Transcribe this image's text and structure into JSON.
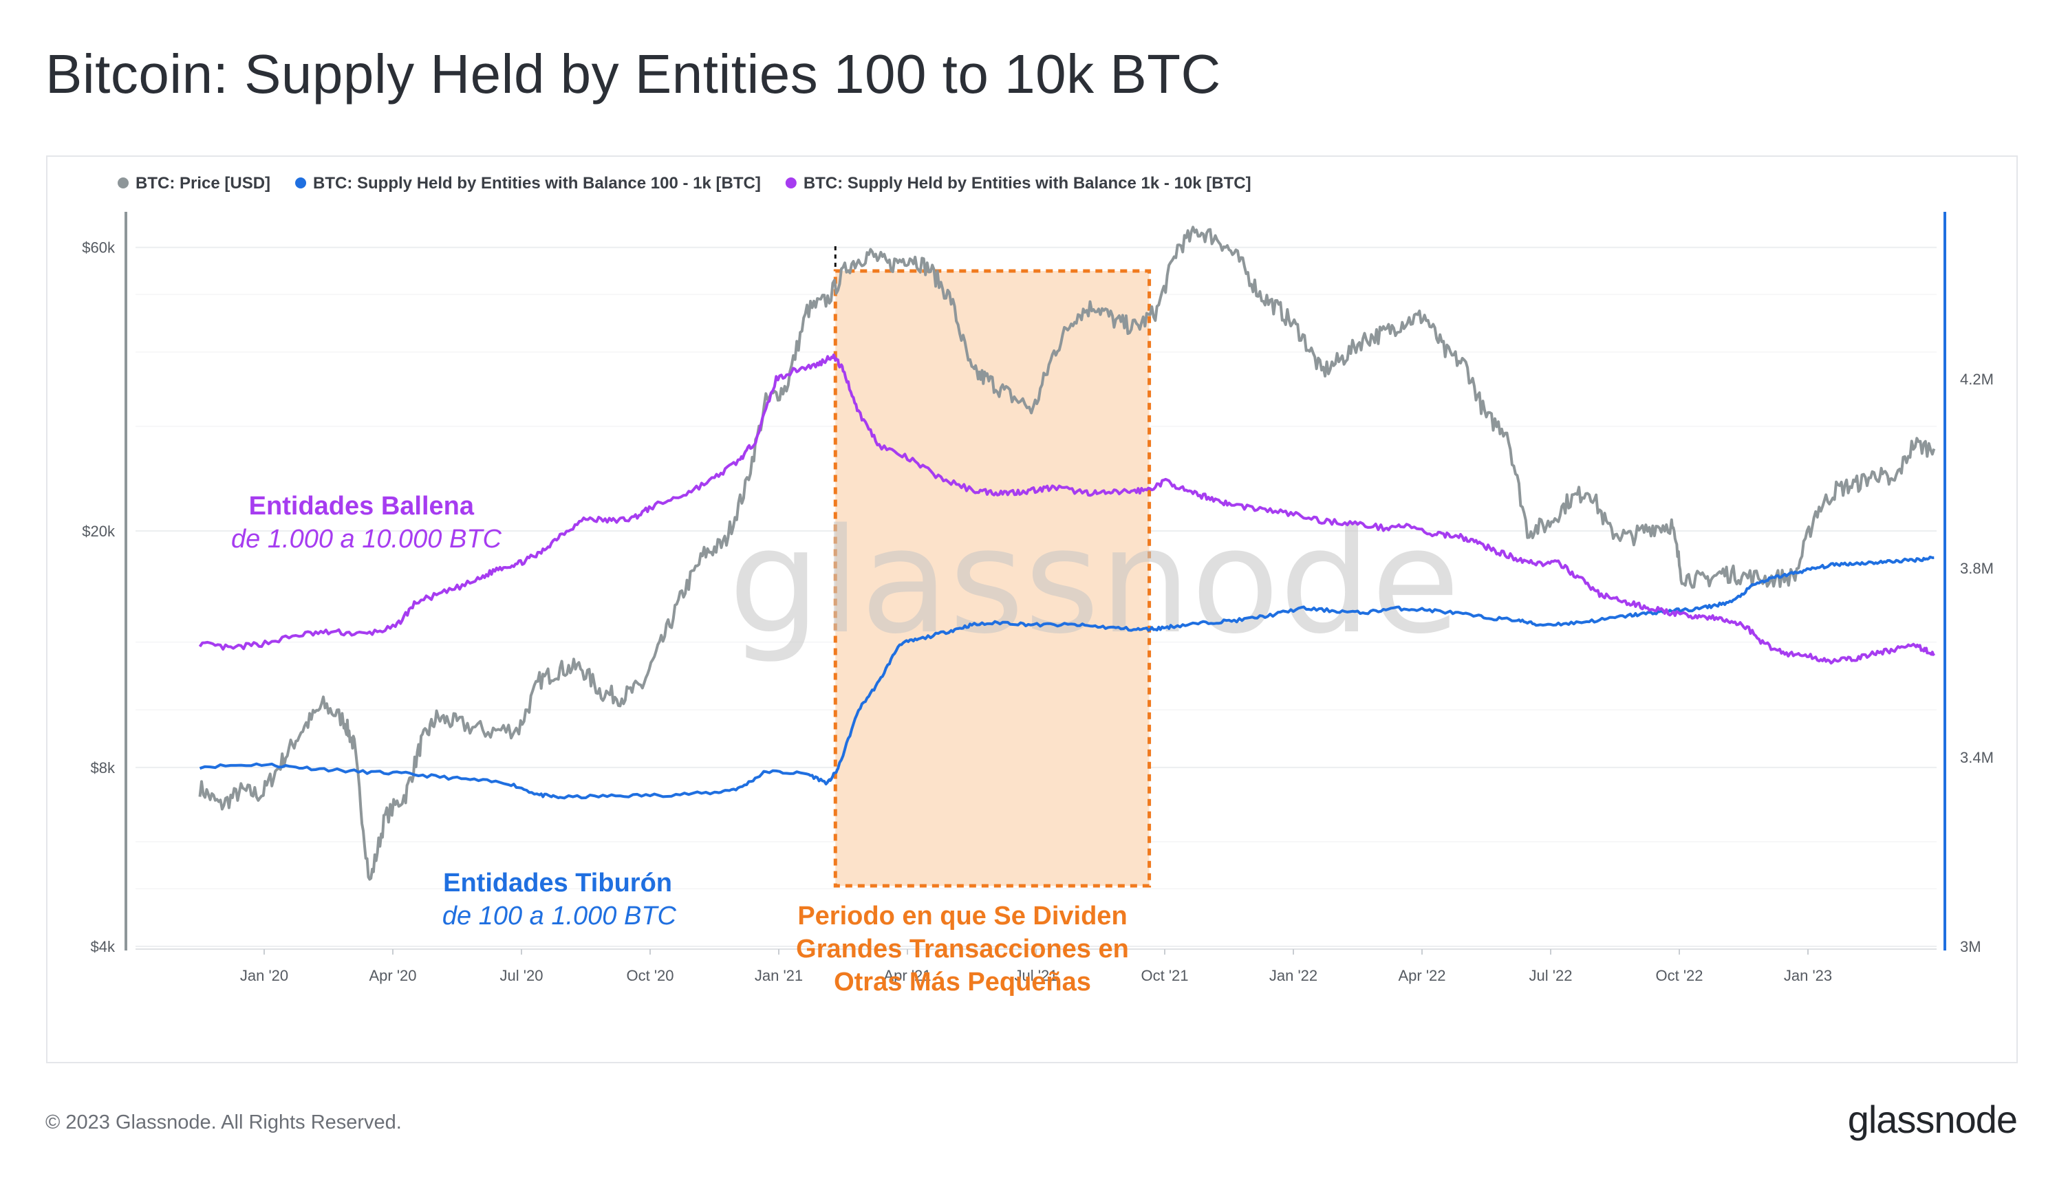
{
  "title": "Bitcoin: Supply Held by Entities 100 to 10k BTC",
  "footer": {
    "copyright": "© 2023 Glassnode. All Rights Reserved.",
    "logo": "glassnode"
  },
  "colors": {
    "price": "#8e9699",
    "shark": "#1f6fe0",
    "whale": "#a63cf0",
    "highlight": "#f07a1e",
    "highlight_fill": "#fce2ca"
  },
  "chart_data": {
    "type": "line",
    "title": "Bitcoin: Supply Held by Entities 100 to 10k BTC",
    "watermark": "glassnode",
    "x_range": [
      "2019-11-15",
      "2023-03-31"
    ],
    "x_ticks": [
      {
        "label": "Jan '20",
        "t": 0.125
      },
      {
        "label": "Apr '20",
        "t": 0.375
      },
      {
        "label": "Jul '20",
        "t": 0.625
      },
      {
        "label": "Oct '20",
        "t": 0.875
      },
      {
        "label": "Jan '21",
        "t": 1.125
      },
      {
        "label": "Apr '21",
        "t": 1.375
      },
      {
        "label": "Jul '21",
        "t": 1.625
      },
      {
        "label": "Oct '21",
        "t": 1.875
      },
      {
        "label": "Jan '22",
        "t": 2.125
      },
      {
        "label": "Apr '22",
        "t": 2.375
      },
      {
        "label": "Jul '22",
        "t": 2.625
      },
      {
        "label": "Oct '22",
        "t": 2.875
      },
      {
        "label": "Jan '23",
        "t": 3.125
      }
    ],
    "y_left": {
      "scale": "log",
      "range": [
        4000,
        75000
      ],
      "ticks": [
        {
          "label": "$4k",
          "v": 4000
        },
        {
          "label": "$8k",
          "v": 8000
        },
        {
          "label": "$20k",
          "v": 20000
        },
        {
          "label": "$60k",
          "v": 60000
        }
      ]
    },
    "y_right": {
      "scale": "linear",
      "range": [
        3000000,
        4600000
      ],
      "ticks": [
        {
          "label": "3M",
          "v": 3000000
        },
        {
          "label": "3.4M",
          "v": 3400000
        },
        {
          "label": "3.8M",
          "v": 3800000
        },
        {
          "label": "4.2M",
          "v": 4200000
        }
      ]
    },
    "legend": [
      {
        "label": "BTC: Price [USD]",
        "color": "#8e9699"
      },
      {
        "label": "BTC: Supply Held by Entities with Balance 100 - 1k [BTC]",
        "color": "#1f6fe0"
      },
      {
        "label": "BTC: Supply Held by Entities with Balance 1k - 10k [BTC]",
        "color": "#a63cf0"
      }
    ],
    "series": [
      {
        "name": "BTC: Price [USD]",
        "axis": "left",
        "points": [
          [
            0,
            7400
          ],
          [
            0.04,
            6900
          ],
          [
            0.08,
            7300
          ],
          [
            0.12,
            7200
          ],
          [
            0.16,
            8200
          ],
          [
            0.2,
            9300
          ],
          [
            0.24,
            10200
          ],
          [
            0.28,
            9600
          ],
          [
            0.3,
            8700
          ],
          [
            0.33,
            5100
          ],
          [
            0.36,
            6600
          ],
          [
            0.4,
            7200
          ],
          [
            0.43,
            8800
          ],
          [
            0.46,
            9700
          ],
          [
            0.5,
            9500
          ],
          [
            0.56,
            9200
          ],
          [
            0.62,
            9300
          ],
          [
            0.66,
            11200
          ],
          [
            0.7,
            11700
          ],
          [
            0.74,
            11800
          ],
          [
            0.78,
            10700
          ],
          [
            0.82,
            10500
          ],
          [
            0.86,
            11000
          ],
          [
            0.9,
            13100
          ],
          [
            0.94,
            15800
          ],
          [
            0.98,
            18300
          ],
          [
            1.02,
            19100
          ],
          [
            1.06,
            23600
          ],
          [
            1.1,
            33000
          ],
          [
            1.14,
            35000
          ],
          [
            1.18,
            47000
          ],
          [
            1.22,
            49000
          ],
          [
            1.26,
            56000
          ],
          [
            1.3,
            58500
          ],
          [
            1.34,
            56000
          ],
          [
            1.38,
            58000
          ],
          [
            1.42,
            55000
          ],
          [
            1.46,
            49000
          ],
          [
            1.5,
            37000
          ],
          [
            1.53,
            36000
          ],
          [
            1.57,
            34000
          ],
          [
            1.62,
            32000
          ],
          [
            1.66,
            40000
          ],
          [
            1.7,
            46000
          ],
          [
            1.74,
            48000
          ],
          [
            1.78,
            45000
          ],
          [
            1.82,
            44000
          ],
          [
            1.86,
            47000
          ],
          [
            1.9,
            60000
          ],
          [
            1.94,
            64000
          ],
          [
            1.98,
            62000
          ],
          [
            2.02,
            57000
          ],
          [
            2.06,
            50000
          ],
          [
            2.1,
            47000
          ],
          [
            2.14,
            43000
          ],
          [
            2.18,
            37000
          ],
          [
            2.22,
            39000
          ],
          [
            2.26,
            42000
          ],
          [
            2.3,
            43000
          ],
          [
            2.34,
            45000
          ],
          [
            2.38,
            46000
          ],
          [
            2.42,
            40000
          ],
          [
            2.46,
            38000
          ],
          [
            2.5,
            31000
          ],
          [
            2.54,
            29500
          ],
          [
            2.58,
            20000
          ],
          [
            2.62,
            20500
          ],
          [
            2.66,
            22500
          ],
          [
            2.7,
            23500
          ],
          [
            2.74,
            20000
          ],
          [
            2.78,
            19500
          ],
          [
            2.82,
            20300
          ],
          [
            2.86,
            20500
          ],
          [
            2.88,
            16800
          ],
          [
            2.92,
            16500
          ],
          [
            2.96,
            17000
          ],
          [
            3.0,
            16800
          ],
          [
            3.05,
            16600
          ],
          [
            3.1,
            16800
          ],
          [
            3.14,
            21500
          ],
          [
            3.18,
            23500
          ],
          [
            3.22,
            24000
          ],
          [
            3.26,
            25000
          ],
          [
            3.29,
            24000
          ],
          [
            3.33,
            28000
          ],
          [
            3.37,
            27500
          ]
        ]
      },
      {
        "name": "BTC: Supply Held by Entities with Balance 100 - 1k [BTC]",
        "axis": "right",
        "points": [
          [
            0,
            3380000
          ],
          [
            0.12,
            3385000
          ],
          [
            0.2,
            3378000
          ],
          [
            0.3,
            3370000
          ],
          [
            0.4,
            3365000
          ],
          [
            0.5,
            3355000
          ],
          [
            0.6,
            3345000
          ],
          [
            0.66,
            3320000
          ],
          [
            0.7,
            3315000
          ],
          [
            0.8,
            3318000
          ],
          [
            0.9,
            3320000
          ],
          [
            1.0,
            3325000
          ],
          [
            1.05,
            3335000
          ],
          [
            1.1,
            3370000
          ],
          [
            1.18,
            3365000
          ],
          [
            1.22,
            3345000
          ],
          [
            1.24,
            3375000
          ],
          [
            1.28,
            3500000
          ],
          [
            1.32,
            3560000
          ],
          [
            1.36,
            3640000
          ],
          [
            1.4,
            3650000
          ],
          [
            1.46,
            3668000
          ],
          [
            1.5,
            3680000
          ],
          [
            1.56,
            3685000
          ],
          [
            1.62,
            3680000
          ],
          [
            1.7,
            3680000
          ],
          [
            1.76,
            3675000
          ],
          [
            1.82,
            3670000
          ],
          [
            1.86,
            3672000
          ],
          [
            1.9,
            3678000
          ],
          [
            1.96,
            3685000
          ],
          [
            2.02,
            3690000
          ],
          [
            2.08,
            3700000
          ],
          [
            2.14,
            3715000
          ],
          [
            2.2,
            3710000
          ],
          [
            2.26,
            3705000
          ],
          [
            2.32,
            3715000
          ],
          [
            2.38,
            3712000
          ],
          [
            2.44,
            3705000
          ],
          [
            2.5,
            3695000
          ],
          [
            2.56,
            3690000
          ],
          [
            2.6,
            3680000
          ],
          [
            2.66,
            3683000
          ],
          [
            2.72,
            3690000
          ],
          [
            2.78,
            3700000
          ],
          [
            2.82,
            3705000
          ],
          [
            2.86,
            3710000
          ],
          [
            2.9,
            3712000
          ],
          [
            2.94,
            3720000
          ],
          [
            2.98,
            3730000
          ],
          [
            3.02,
            3765000
          ],
          [
            3.06,
            3780000
          ],
          [
            3.1,
            3790000
          ],
          [
            3.14,
            3800000
          ],
          [
            3.18,
            3808000
          ],
          [
            3.22,
            3810000
          ],
          [
            3.26,
            3812000
          ],
          [
            3.3,
            3815000
          ],
          [
            3.34,
            3818000
          ],
          [
            3.37,
            3822000
          ]
        ]
      },
      {
        "name": "BTC: Supply Held by Entities with Balance 1k - 10k [BTC]",
        "axis": "right",
        "points": [
          [
            0,
            3640000
          ],
          [
            0.06,
            3630000
          ],
          [
            0.12,
            3640000
          ],
          [
            0.2,
            3660000
          ],
          [
            0.26,
            3665000
          ],
          [
            0.32,
            3660000
          ],
          [
            0.38,
            3675000
          ],
          [
            0.42,
            3728000
          ],
          [
            0.48,
            3750000
          ],
          [
            0.54,
            3775000
          ],
          [
            0.58,
            3800000
          ],
          [
            0.62,
            3810000
          ],
          [
            0.66,
            3830000
          ],
          [
            0.7,
            3870000
          ],
          [
            0.75,
            3905000
          ],
          [
            0.8,
            3900000
          ],
          [
            0.84,
            3905000
          ],
          [
            0.88,
            3930000
          ],
          [
            0.94,
            3955000
          ],
          [
            1.0,
            3990000
          ],
          [
            1.05,
            4030000
          ],
          [
            1.08,
            4070000
          ],
          [
            1.12,
            4200000
          ],
          [
            1.16,
            4220000
          ],
          [
            1.2,
            4230000
          ],
          [
            1.23,
            4250000
          ],
          [
            1.25,
            4220000
          ],
          [
            1.28,
            4130000
          ],
          [
            1.32,
            4060000
          ],
          [
            1.38,
            4030000
          ],
          [
            1.44,
            3990000
          ],
          [
            1.5,
            3965000
          ],
          [
            1.54,
            3960000
          ],
          [
            1.58,
            3960000
          ],
          [
            1.62,
            3965000
          ],
          [
            1.66,
            3970000
          ],
          [
            1.72,
            3960000
          ],
          [
            1.76,
            3958000
          ],
          [
            1.8,
            3962000
          ],
          [
            1.84,
            3965000
          ],
          [
            1.88,
            3985000
          ],
          [
            1.92,
            3960000
          ],
          [
            1.96,
            3950000
          ],
          [
            2.0,
            3935000
          ],
          [
            2.06,
            3925000
          ],
          [
            2.12,
            3915000
          ],
          [
            2.18,
            3900000
          ],
          [
            2.24,
            3895000
          ],
          [
            2.3,
            3885000
          ],
          [
            2.34,
            3890000
          ],
          [
            2.4,
            3870000
          ],
          [
            2.44,
            3870000
          ],
          [
            2.48,
            3855000
          ],
          [
            2.52,
            3835000
          ],
          [
            2.56,
            3820000
          ],
          [
            2.6,
            3810000
          ],
          [
            2.64,
            3810000
          ],
          [
            2.68,
            3780000
          ],
          [
            2.72,
            3745000
          ],
          [
            2.76,
            3730000
          ],
          [
            2.8,
            3720000
          ],
          [
            2.84,
            3710000
          ],
          [
            2.88,
            3700000
          ],
          [
            2.92,
            3698000
          ],
          [
            2.96,
            3690000
          ],
          [
            3.0,
            3680000
          ],
          [
            3.04,
            3640000
          ],
          [
            3.08,
            3620000
          ],
          [
            3.12,
            3615000
          ],
          [
            3.16,
            3605000
          ],
          [
            3.2,
            3605000
          ],
          [
            3.24,
            3615000
          ],
          [
            3.28,
            3625000
          ],
          [
            3.32,
            3635000
          ],
          [
            3.35,
            3630000
          ],
          [
            3.37,
            3615000
          ]
        ]
      }
    ],
    "highlight": {
      "t_start": 1.235,
      "t_end": 1.845
    },
    "annotations": {
      "whale": {
        "title": "Entidades Ballena",
        "subtitle": "de 1.000 a 10.000 BTC"
      },
      "shark": {
        "title": "Entidades Tiburón",
        "subtitle": "de 100 a 1.000 BTC"
      },
      "period": [
        "Periodo en que Se Dividen",
        "Grandes Transacciones en",
        "Otras Más Pequeñas"
      ]
    }
  }
}
